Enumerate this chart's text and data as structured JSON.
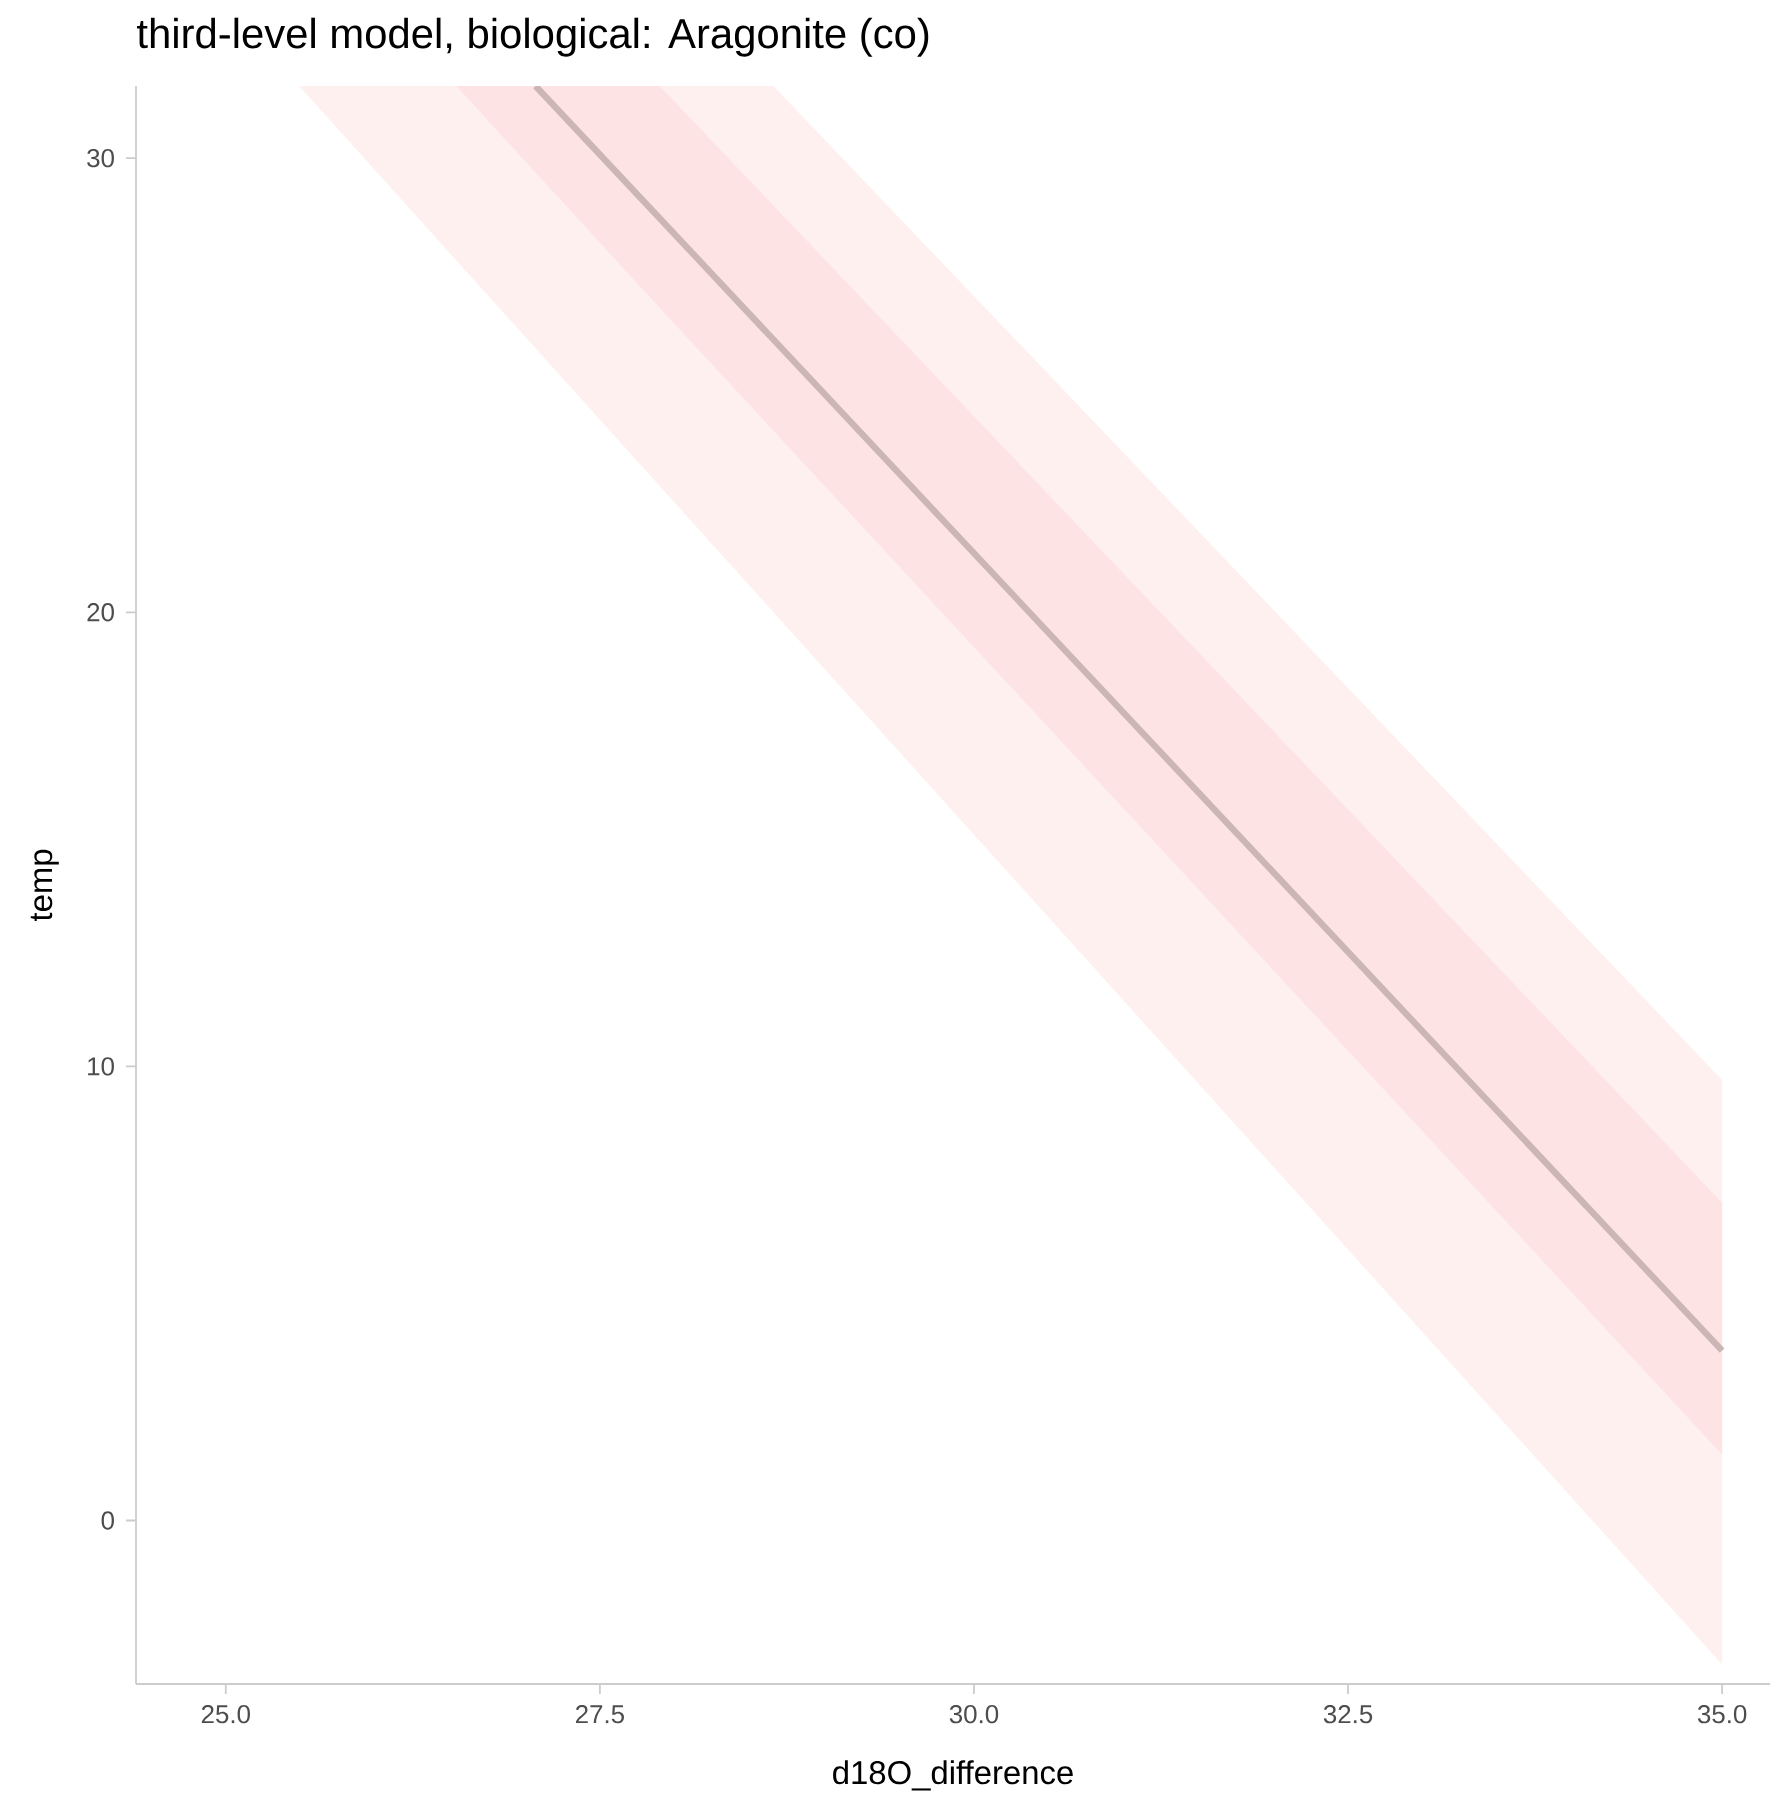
{
  "chart_data": {
    "type": "line",
    "title": "third-level model, biological: Aragonite (co)",
    "xlabel": "d18O_difference",
    "ylabel": "temp",
    "xlim": [
      24.4,
      35.32
    ],
    "ylim": [
      -3.6,
      31.59
    ],
    "xticks": [
      {
        "value": 25,
        "label": "25.0"
      },
      {
        "value": 27.5,
        "label": "27.5"
      },
      {
        "value": 30,
        "label": "30.0"
      },
      {
        "value": 32.5,
        "label": "32.5"
      },
      {
        "value": 35,
        "label": "35.0"
      }
    ],
    "yticks": [
      0,
      10,
      20,
      30
    ],
    "grid": false,
    "series": [
      {
        "type": "area",
        "color": "#fff0f0",
        "x": [
          25.49,
          28.66,
          35
        ],
        "values": [
          null,
          null,
          null
        ],
        "lower": [
          31.59,
          20.0,
          -3.17
        ],
        "upper": [
          31.59,
          31.59,
          9.7
        ]
      },
      {
        "type": "area",
        "color": "#fde3e4",
        "x": [
          26.54,
          27.9,
          35
        ],
        "values": [
          null,
          null,
          null
        ],
        "lower": [
          31.59,
          26.7,
          1.45
        ],
        "upper": [
          31.59,
          31.59,
          7.0
        ]
      },
      {
        "color": "#cbb5b5",
        "x": [
          27.07,
          35
        ],
        "values": [
          31.59,
          3.74
        ]
      }
    ]
  }
}
